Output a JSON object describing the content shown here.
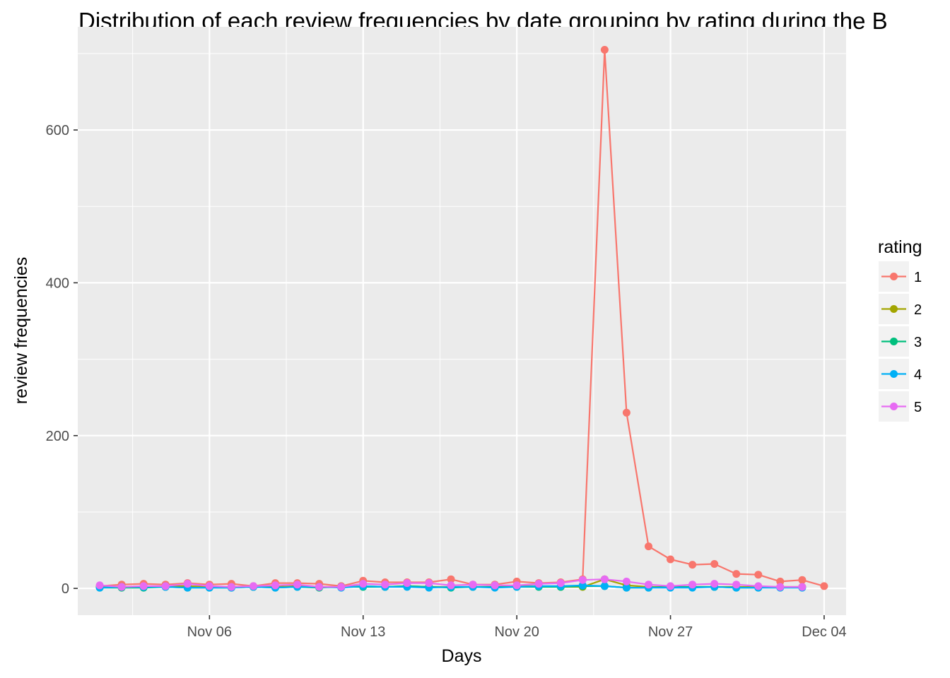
{
  "chart_data": {
    "type": "line",
    "title": "Distribution of each review frequencies by date grouping by rating during the B",
    "xlabel": "Days",
    "ylabel": "review frequencies",
    "x_axis_type": "date",
    "xlim": [
      "2017-10-31",
      "2017-12-05"
    ],
    "ylim": [
      -35,
      735
    ],
    "x_ticks": [
      {
        "date": "2017-11-06",
        "label": "Nov 06"
      },
      {
        "date": "2017-11-13",
        "label": "Nov 13"
      },
      {
        "date": "2017-11-20",
        "label": "Nov 20"
      },
      {
        "date": "2017-11-27",
        "label": "Nov 27"
      },
      {
        "date": "2017-12-04",
        "label": "Dec 04"
      }
    ],
    "y_ticks": [
      0,
      200,
      400,
      600
    ],
    "grid": true,
    "legend_placement": "right",
    "legend_title": "rating",
    "series": [
      {
        "name": "1",
        "color": "#F8766D",
        "x": [
          "2017-11-01",
          "2017-11-02",
          "2017-11-03",
          "2017-11-04",
          "2017-11-05",
          "2017-11-06",
          "2017-11-07",
          "2017-11-08",
          "2017-11-09",
          "2017-11-10",
          "2017-11-11",
          "2017-11-12",
          "2017-11-13",
          "2017-11-14",
          "2017-11-15",
          "2017-11-16",
          "2017-11-17",
          "2017-11-18",
          "2017-11-19",
          "2017-11-20",
          "2017-11-21",
          "2017-11-22",
          "2017-11-23",
          "2017-11-24",
          "2017-11-25",
          "2017-11-26",
          "2017-11-27",
          "2017-11-28",
          "2017-11-29",
          "2017-11-30",
          "2017-12-01",
          "2017-12-02",
          "2017-12-03",
          "2017-12-04"
        ],
        "values": [
          3,
          5,
          6,
          5,
          7,
          5,
          6,
          3,
          7,
          7,
          6,
          3,
          10,
          8,
          8,
          8,
          12,
          5,
          5,
          9,
          7,
          8,
          12,
          705,
          230,
          55,
          38,
          31,
          32,
          19,
          18,
          9,
          11,
          3
        ]
      },
      {
        "name": "2",
        "color": "#A3A500",
        "x": [
          "2017-11-01",
          "2017-11-02",
          "2017-11-03",
          "2017-11-04",
          "2017-11-05",
          "2017-11-06",
          "2017-11-07",
          "2017-11-08",
          "2017-11-09",
          "2017-11-10",
          "2017-11-11",
          "2017-11-12",
          "2017-11-13",
          "2017-11-14",
          "2017-11-15",
          "2017-11-16",
          "2017-11-17",
          "2017-11-18",
          "2017-11-19",
          "2017-11-20",
          "2017-11-21",
          "2017-11-22",
          "2017-11-23",
          "2017-11-24",
          "2017-11-25",
          "2017-11-26",
          "2017-11-27",
          "2017-11-28",
          "2017-11-29",
          "2017-11-30",
          "2017-12-01",
          "2017-12-02",
          "2017-12-03"
        ],
        "values": [
          2,
          2,
          2,
          3,
          3,
          2,
          2,
          2,
          2,
          3,
          2,
          2,
          3,
          2,
          3,
          2,
          2,
          2,
          2,
          3,
          3,
          2,
          2,
          12,
          4,
          2,
          2,
          2,
          2,
          2,
          2,
          2,
          2
        ]
      },
      {
        "name": "3",
        "color": "#00BF7D",
        "x": [
          "2017-11-01",
          "2017-11-02",
          "2017-11-03",
          "2017-11-04",
          "2017-11-05",
          "2017-11-06",
          "2017-11-07",
          "2017-11-08",
          "2017-11-09",
          "2017-11-10",
          "2017-11-11",
          "2017-11-12",
          "2017-11-13",
          "2017-11-14",
          "2017-11-15",
          "2017-11-16",
          "2017-11-17",
          "2017-11-18",
          "2017-11-19",
          "2017-11-20",
          "2017-11-21",
          "2017-11-22",
          "2017-11-23",
          "2017-11-24",
          "2017-11-25",
          "2017-11-26",
          "2017-11-27",
          "2017-11-28",
          "2017-11-29",
          "2017-11-30",
          "2017-12-01"
        ],
        "values": [
          1,
          1,
          1,
          2,
          1,
          1,
          1,
          2,
          1,
          2,
          1,
          2,
          2,
          2,
          3,
          2,
          1,
          2,
          2,
          2,
          2,
          2,
          3,
          3,
          1,
          1,
          2,
          2,
          2,
          1,
          1
        ]
      },
      {
        "name": "4",
        "color": "#00B0F6",
        "x": [
          "2017-11-01",
          "2017-11-02",
          "2017-11-03",
          "2017-11-04",
          "2017-11-05",
          "2017-11-06",
          "2017-11-07",
          "2017-11-08",
          "2017-11-09",
          "2017-11-10",
          "2017-11-11",
          "2017-11-12",
          "2017-11-13",
          "2017-11-14",
          "2017-11-15",
          "2017-11-16",
          "2017-11-17",
          "2017-11-18",
          "2017-11-19",
          "2017-11-20",
          "2017-11-21",
          "2017-11-22",
          "2017-11-23",
          "2017-11-24",
          "2017-11-25",
          "2017-11-26",
          "2017-11-27",
          "2017-11-28",
          "2017-11-29",
          "2017-11-30",
          "2017-12-01",
          "2017-12-02",
          "2017-12-03"
        ],
        "values": [
          1,
          2,
          2,
          2,
          1,
          1,
          1,
          2,
          1,
          2,
          2,
          1,
          3,
          2,
          2,
          1,
          2,
          2,
          1,
          2,
          3,
          3,
          4,
          3,
          1,
          1,
          1,
          1,
          2,
          1,
          1,
          1,
          1
        ]
      },
      {
        "name": "5",
        "color": "#E76BF3",
        "x": [
          "2017-11-01",
          "2017-11-02",
          "2017-11-03",
          "2017-11-04",
          "2017-11-05",
          "2017-11-06",
          "2017-11-07",
          "2017-11-08",
          "2017-11-09",
          "2017-11-10",
          "2017-11-11",
          "2017-11-12",
          "2017-11-13",
          "2017-11-14",
          "2017-11-15",
          "2017-11-16",
          "2017-11-17",
          "2017-11-18",
          "2017-11-19",
          "2017-11-20",
          "2017-11-21",
          "2017-11-22",
          "2017-11-23",
          "2017-11-24",
          "2017-11-25",
          "2017-11-26",
          "2017-11-27",
          "2017-11-28",
          "2017-11-29",
          "2017-11-30",
          "2017-12-01",
          "2017-12-02",
          "2017-12-03"
        ],
        "values": [
          4,
          2,
          3,
          3,
          6,
          3,
          2,
          3,
          4,
          5,
          2,
          2,
          6,
          5,
          7,
          7,
          4,
          5,
          4,
          4,
          6,
          7,
          11,
          12,
          9,
          5,
          3,
          5,
          6,
          5,
          3,
          2,
          2
        ]
      }
    ]
  }
}
